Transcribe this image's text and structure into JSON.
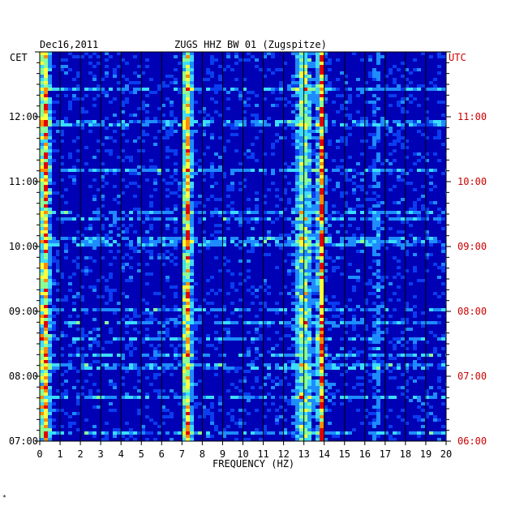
{
  "header": {
    "date": "Dec16,2011",
    "station": "ZUGS HHZ BW 01 (Zugspitze)"
  },
  "corner_mark": "*",
  "chart_data": {
    "type": "heatmap",
    "title": "ZUGS HHZ BW 01 (Zugspitze)",
    "date": "Dec16,2011",
    "xlabel": "FREQUENCY (HZ)",
    "xlim": [
      0,
      20
    ],
    "x_ticks": [
      "0",
      "1",
      "2",
      "3",
      "4",
      "5",
      "6",
      "7",
      "8",
      "9",
      "10",
      "11",
      "12",
      "13",
      "14",
      "15",
      "16",
      "17",
      "18",
      "19",
      "20"
    ],
    "left_axis_label": "CET",
    "right_axis_label": "UTC",
    "left_ticks": [
      "12:00",
      "11:00",
      "10:00",
      "09:00",
      "08:00",
      "07:00"
    ],
    "right_ticks": [
      "11:00",
      "10:00",
      "09:00",
      "08:00",
      "07:00",
      "06:00"
    ],
    "time_range_utc": [
      "06:00",
      "11:59"
    ],
    "colormap": [
      "#00007a",
      "#0000c8",
      "#0a3cf0",
      "#1e8cff",
      "#3cdcff",
      "#8cff96",
      "#ffff3c",
      "#ff8c00",
      "#e60000"
    ],
    "background_color": "#0000b4",
    "grid_color": "#000000",
    "energy_bands_hz": [
      {
        "center": 0.25,
        "width": 0.35,
        "level": 0.75
      },
      {
        "center": 7.25,
        "width": 0.35,
        "level": 0.65
      },
      {
        "center": 13.0,
        "width": 0.6,
        "level": 0.45
      },
      {
        "center": 13.85,
        "width": 0.25,
        "level": 0.8
      },
      {
        "center": 16.6,
        "width": 0.3,
        "level": 0.15
      }
    ]
  }
}
